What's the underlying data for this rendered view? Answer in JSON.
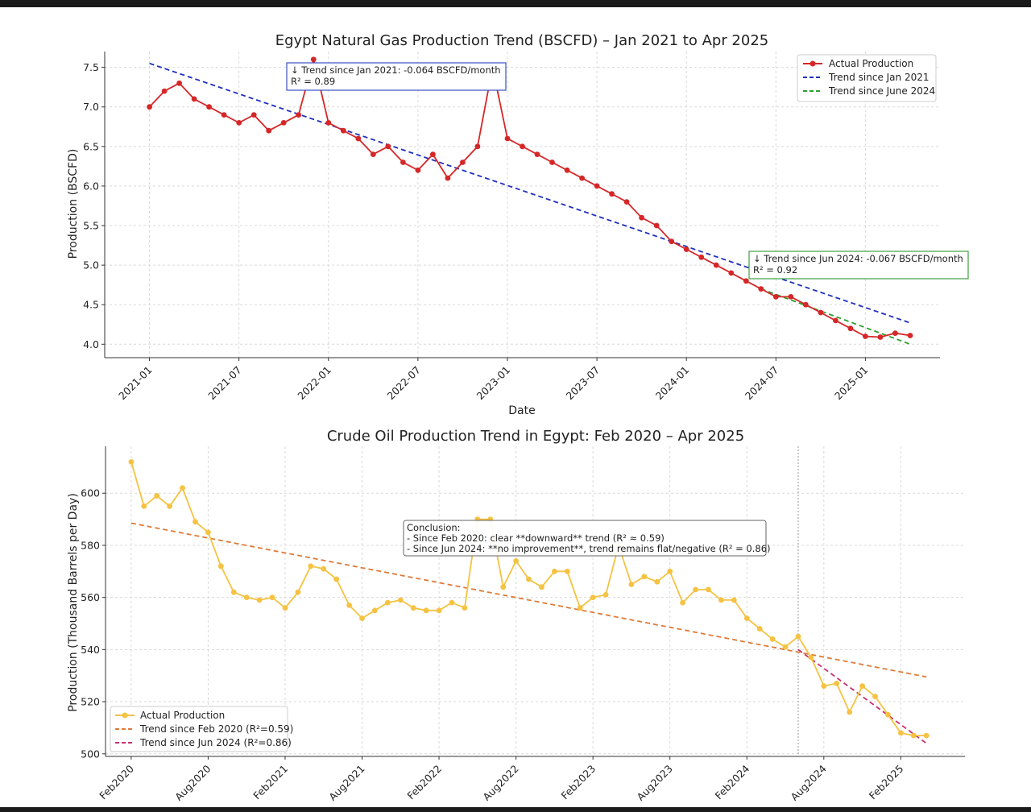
{
  "chart_data": [
    {
      "type": "line",
      "title": "Egypt Natural Gas Production Trend (BSCFD) – Jan 2021 to Apr 2025",
      "xlabel": "Date",
      "ylabel": "Production (BSCFD)",
      "grid": true,
      "legend_position": "top-right",
      "x_ticks": [
        "2021-01",
        "2021-07",
        "2022-01",
        "2022-07",
        "2023-01",
        "2023-07",
        "2024-01",
        "2024-07",
        "2025-01"
      ],
      "y_ticks": [
        "4.0",
        "4.5",
        "5.0",
        "5.5",
        "6.0",
        "6.5",
        "7.0",
        "7.5"
      ],
      "ylim": [
        3.83,
        7.7
      ],
      "xlim": [
        "2020-10",
        "2025-06"
      ],
      "series": [
        {
          "name": "Actual Production",
          "style": "line-marker",
          "color": "#d62728",
          "x": [
            "2021-01",
            "2021-02",
            "2021-03",
            "2021-04",
            "2021-05",
            "2021-06",
            "2021-07",
            "2021-08",
            "2021-09",
            "2021-10",
            "2021-11",
            "2021-12",
            "2022-01",
            "2022-02",
            "2022-03",
            "2022-04",
            "2022-05",
            "2022-06",
            "2022-07",
            "2022-08",
            "2022-09",
            "2022-10",
            "2022-11",
            "2022-12",
            "2023-01",
            "2023-02",
            "2023-03",
            "2023-04",
            "2023-05",
            "2023-06",
            "2023-07",
            "2023-08",
            "2023-09",
            "2023-10",
            "2023-11",
            "2023-12",
            "2024-01",
            "2024-02",
            "2024-03",
            "2024-04",
            "2024-05",
            "2024-06",
            "2024-07",
            "2024-08",
            "2024-09",
            "2024-10",
            "2024-11",
            "2024-12",
            "2025-01",
            "2025-02",
            "2025-03",
            "2025-04"
          ],
          "y": [
            7.0,
            7.2,
            7.3,
            7.1,
            7.0,
            6.9,
            6.8,
            6.9,
            6.7,
            6.8,
            6.9,
            7.6,
            6.8,
            6.7,
            6.6,
            6.4,
            6.5,
            6.3,
            6.2,
            6.4,
            6.1,
            6.3,
            6.5,
            7.5,
            6.6,
            6.5,
            6.4,
            6.3,
            6.2,
            6.1,
            6.0,
            5.9,
            5.8,
            5.6,
            5.5,
            5.3,
            5.2,
            5.1,
            5.0,
            4.9,
            4.8,
            4.7,
            4.6,
            4.6,
            4.5,
            4.4,
            4.3,
            4.2,
            4.1,
            4.09,
            4.14,
            4.11
          ]
        },
        {
          "name": "Trend since Jan 2021",
          "style": "dashed",
          "color": "#1f2fbf",
          "x": [
            "2021-01",
            "2025-04"
          ],
          "y": [
            7.55,
            4.27
          ]
        },
        {
          "name": "Trend since June 2024",
          "style": "dashed",
          "color": "#2ca02c",
          "x": [
            "2024-06",
            "2025-04"
          ],
          "y": [
            4.7,
            4.0
          ]
        }
      ],
      "annotations": [
        {
          "line1": "↓ Trend since Jan 2021: -0.064 BSCFD/month",
          "line2": "R² = 0.89",
          "color": "#3b4fc4"
        },
        {
          "line1": "↓ Trend since Jun 2024: -0.067 BSCFD/month",
          "line2": "R² = 0.92",
          "color": "#3fa03f"
        }
      ]
    },
    {
      "type": "line",
      "title": "Crude Oil Production Trend in Egypt: Feb 2020 – Apr 2025",
      "xlabel": "",
      "ylabel": "Production (Thousand Barrels per Day)",
      "grid": true,
      "legend_position": "bottom-left",
      "x_ticks": [
        "Feb2020",
        "Aug2020",
        "Feb2021",
        "Aug2021",
        "Feb2022",
        "Aug2022",
        "Feb2023",
        "Aug2023",
        "Feb2024",
        "Aug2024",
        "Feb2025"
      ],
      "y_ticks": [
        "500",
        "520",
        "540",
        "560",
        "580",
        "600"
      ],
      "ylim": [
        499,
        618
      ],
      "xlim": [
        "2019-12",
        "2025-07"
      ],
      "vertical_marker": "2024-06",
      "series": [
        {
          "name": "Actual Production",
          "style": "line-marker",
          "color": "#f5c242",
          "x": [
            "2020-02",
            "2020-03",
            "2020-04",
            "2020-05",
            "2020-06",
            "2020-07",
            "2020-08",
            "2020-09",
            "2020-10",
            "2020-11",
            "2020-12",
            "2021-01",
            "2021-02",
            "2021-03",
            "2021-04",
            "2021-05",
            "2021-06",
            "2021-07",
            "2021-08",
            "2021-09",
            "2021-10",
            "2021-11",
            "2021-12",
            "2022-01",
            "2022-02",
            "2022-03",
            "2022-04",
            "2022-05",
            "2022-06",
            "2022-07",
            "2022-08",
            "2022-09",
            "2022-10",
            "2022-11",
            "2022-12",
            "2023-01",
            "2023-02",
            "2023-03",
            "2023-04",
            "2023-05",
            "2023-06",
            "2023-07",
            "2023-08",
            "2023-09",
            "2023-10",
            "2023-11",
            "2023-12",
            "2024-01",
            "2024-02",
            "2024-03",
            "2024-04",
            "2024-05",
            "2024-06",
            "2024-07",
            "2024-08",
            "2024-09",
            "2024-10",
            "2024-11",
            "2024-12",
            "2025-01",
            "2025-02",
            "2025-03",
            "2025-04"
          ],
          "y": [
            612,
            595,
            599,
            595,
            602,
            589,
            585,
            572,
            562,
            560,
            559,
            560,
            556,
            562,
            572,
            571,
            567,
            557,
            552,
            555,
            558,
            559,
            556,
            555,
            555,
            558,
            556,
            590,
            590,
            564,
            574,
            567,
            564,
            570,
            570,
            556,
            560,
            561,
            580,
            565,
            568,
            566,
            570,
            558,
            563,
            563,
            559,
            559,
            552,
            548,
            544,
            541,
            545,
            537,
            526,
            527,
            516,
            526,
            522,
            515,
            508,
            507,
            507
          ]
        },
        {
          "name": "Trend since Feb 2020 (R²=0.59)",
          "style": "dashed",
          "color": "#e07b39",
          "x": [
            "2020-02",
            "2025-04"
          ],
          "y": [
            588.5,
            529.5
          ]
        },
        {
          "name": "Trend since Jun 2024 (R²=0.86)",
          "style": "dashed",
          "color": "#c8306e",
          "x": [
            "2024-06",
            "2025-04"
          ],
          "y": [
            540.0,
            504.0
          ]
        }
      ],
      "annotations": [
        {
          "line1": "Conclusion:",
          "line2": "- Since Feb 2020: clear **downward** trend (R² ≈ 0.59)",
          "line3": "- Since Jun 2024: **no improvement**, trend remains flat/negative (R² = 0.86)",
          "color": "#666666"
        }
      ]
    }
  ]
}
